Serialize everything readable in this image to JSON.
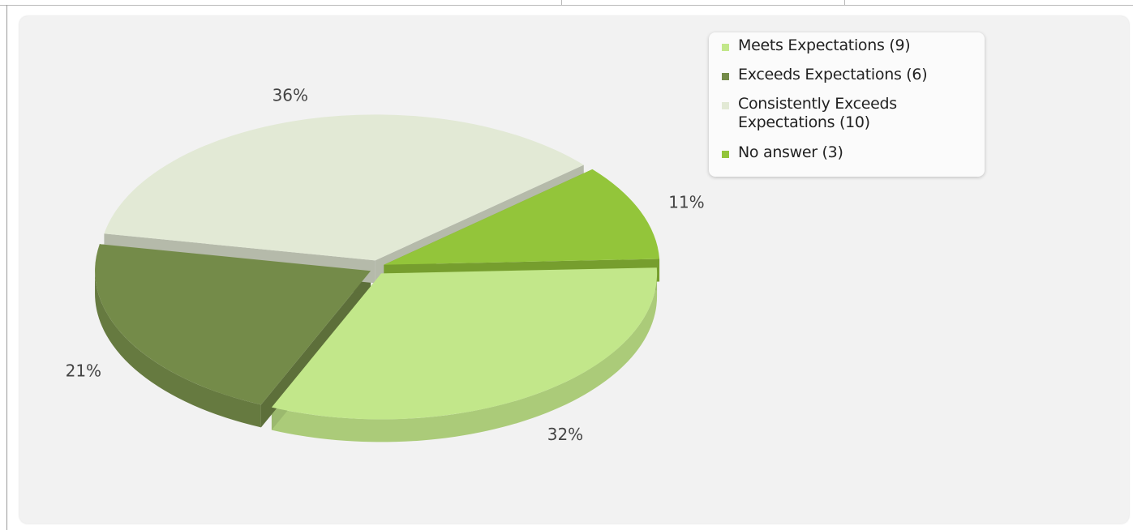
{
  "chart_data": {
    "type": "pie",
    "slices": [
      {
        "label": "Meets Expectations (9)",
        "value": 9,
        "percent_label": "32%",
        "color": "#c2e78a"
      },
      {
        "label": "Exceeds Expectations (6)",
        "value": 6,
        "percent_label": "21%",
        "color": "#748b49"
      },
      {
        "label": "Consistently Exceeds Expectations (10)",
        "value": 10,
        "percent_label": "36%",
        "color": "#e2e9d5"
      },
      {
        "label": "No answer (3)",
        "value": 3,
        "percent_label": "11%",
        "color": "#93c53a"
      }
    ],
    "legend_position": "top-right",
    "style": "3d-exploded"
  },
  "legend": {
    "items": [
      {
        "label": "Meets Expectations (9)",
        "color": "#c2e78a"
      },
      {
        "label": "Exceeds Expectations (6)",
        "color": "#748b49"
      },
      {
        "label": "Consistently Exceeds Expectations (10)",
        "color": "#e2e9d5"
      },
      {
        "label": "No answer (3)",
        "color": "#93c53a"
      }
    ]
  }
}
